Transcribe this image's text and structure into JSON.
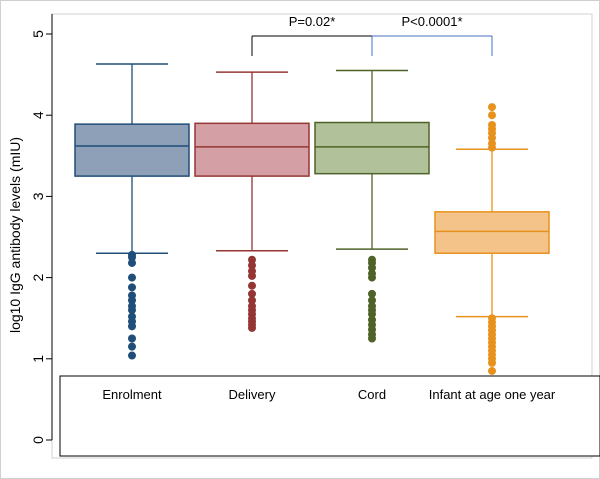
{
  "chart_data": {
    "type": "boxplot",
    "ylabel": "log10 IgG antibody levels (mIU)",
    "ylim": [
      0,
      5
    ],
    "yticks": [
      "0",
      "1",
      "2",
      "3",
      "4",
      "5"
    ],
    "grid": false,
    "legend": "none",
    "categories": [
      "Enrolment",
      "Delivery",
      "Cord",
      "Infant at age one year"
    ],
    "series": [
      {
        "color": "#1f4e79",
        "fill": "#8da0b7",
        "whisker_low": 2.3,
        "q1": 3.25,
        "median": 3.62,
        "q3": 3.89,
        "whisker_high": 4.63,
        "outliers": [
          2.28,
          2.25,
          2.18,
          2.0,
          1.88,
          1.78,
          1.72,
          1.65,
          1.6,
          1.52,
          1.46,
          1.4,
          1.25,
          1.15,
          1.04
        ]
      },
      {
        "color": "#943634",
        "fill": "#d4a0a5",
        "whisker_low": 2.33,
        "q1": 3.25,
        "median": 3.61,
        "q3": 3.9,
        "whisker_high": 4.53,
        "outliers": [
          2.22,
          2.15,
          2.08,
          2.02,
          1.9,
          1.8,
          1.72,
          1.65,
          1.6,
          1.55,
          1.5,
          1.46,
          1.42,
          1.38
        ]
      },
      {
        "color": "#4f6228",
        "fill": "#b1c29b",
        "whisker_low": 2.35,
        "q1": 3.28,
        "median": 3.61,
        "q3": 3.91,
        "whisker_high": 4.55,
        "outliers": [
          2.22,
          2.18,
          2.12,
          2.05,
          2.0,
          1.8,
          1.72,
          1.65,
          1.6,
          1.55,
          1.48,
          1.42,
          1.36,
          1.3,
          1.25
        ]
      },
      {
        "color": "#e8921e",
        "fill": "#f4c38a",
        "whisker_low": 1.52,
        "q1": 2.3,
        "median": 2.57,
        "q3": 2.81,
        "whisker_high": 3.58,
        "outliers": [
          4.1,
          4.0,
          3.88,
          3.83,
          3.78,
          3.72,
          3.65,
          3.6,
          1.5,
          1.45,
          1.4,
          1.35,
          1.3,
          1.25,
          1.2,
          1.15,
          1.1,
          1.05,
          1.0,
          0.95,
          0.85
        ]
      }
    ],
    "annotations": [
      {
        "label": "P=0.02*",
        "from": 1,
        "to": 2,
        "height": 4.95,
        "color": "#000000"
      },
      {
        "label": "P<0.0001*",
        "from": 2,
        "to": 3,
        "height": 4.95,
        "color": "#4472c4"
      }
    ]
  }
}
